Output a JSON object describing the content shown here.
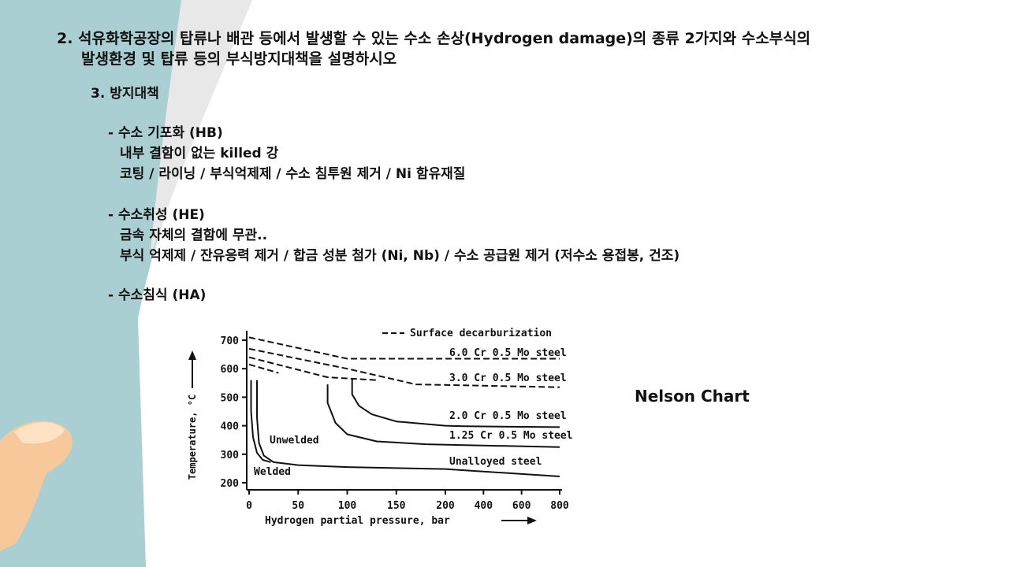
{
  "slide": {
    "title_line1": "2. 석유화학공장의 탑류나 배관 등에서 발생할 수 있는 수소 손상(Hydrogen damage)의 종류 2가지와 수소부식의",
    "title_line2": "발생환경 및 탑류 등의 부식방지대책을 설명하시오",
    "section_heading": "3. 방지대책",
    "items": [
      {
        "head": "- 수소 기포화 (HB)",
        "lines": [
          "내부 결함이 없는 killed 강",
          "코팅 / 라이닝 / 부식억제제 / 수소 침투원 제거 / Ni 함유재질"
        ]
      },
      {
        "head": "- 수소취성 (HE)",
        "lines": [
          "금속 자체의 결함에 무관..",
          "부식 억제제 / 잔유응력 제거 / 합금 성분 첨가 (Ni, Nb) / 수소 공급원 제거 (저수소 용접봉, 건조)"
        ]
      },
      {
        "head": "- 수소침식 (HA)",
        "lines": []
      }
    ],
    "chart_caption": "Nelson Chart"
  },
  "colors": {
    "decor_teal": "#a9cfd3",
    "decor_skin": "#f7c99a",
    "decor_curl": "#e8e8e8"
  },
  "chart_data": {
    "type": "line",
    "xlabel": "Hydrogen partial pressure, bar",
    "ylabel": "Temperature, °C",
    "x_ticks": [
      "0",
      "50",
      "100",
      "150",
      "200",
      "400",
      "600",
      "800"
    ],
    "y_ticks": [
      "200",
      "300",
      "400",
      "500",
      "600",
      "700"
    ],
    "ylim": [
      200,
      700
    ],
    "x_scale": "piecewise: 0-200 linear, 200-800 compressed",
    "legend_entry": "Surface decarburization",
    "series": [
      {
        "name": "6.0 Cr 0.5 Mo steel",
        "style": "dashed",
        "x": [
          0,
          100,
          800
        ],
        "y": [
          710,
          635,
          635
        ]
      },
      {
        "name": "3.0 Cr 0.5 Mo steel",
        "style": "dashed",
        "x": [
          0,
          100,
          170,
          800
        ],
        "y": [
          670,
          600,
          545,
          535
        ]
      },
      {
        "name": "",
        "style": "dashed",
        "x": [
          0,
          80,
          130
        ],
        "y": [
          640,
          570,
          560
        ]
      },
      {
        "name": "",
        "style": "dashed",
        "x": [
          0,
          30
        ],
        "y": [
          615,
          585
        ]
      },
      {
        "name": "2.0 Cr 0.5 Mo steel",
        "style": "solid",
        "x": [
          105,
          105,
          112,
          125,
          150,
          200,
          300,
          800
        ],
        "y": [
          565,
          510,
          470,
          440,
          415,
          400,
          398,
          395
        ]
      },
      {
        "name": "1.25 Cr 0.5 Mo steel",
        "style": "solid",
        "x": [
          80,
          80,
          88,
          100,
          130,
          180,
          300,
          800
        ],
        "y": [
          545,
          480,
          410,
          370,
          345,
          335,
          332,
          325
        ]
      },
      {
        "name": "Unalloyed steel",
        "style": "solid",
        "x": [
          8,
          8,
          10,
          15,
          25,
          50,
          100,
          200,
          800
        ],
        "y": [
          560,
          430,
          340,
          295,
          272,
          262,
          255,
          248,
          222
        ]
      },
      {
        "name": "Unalloyed steel, welded",
        "style": "solid",
        "x": [
          2,
          2,
          4,
          8,
          14,
          22
        ],
        "y": [
          560,
          450,
          360,
          305,
          280,
          272
        ]
      }
    ],
    "annotations": [
      "Unwelded",
      "Welded"
    ]
  }
}
